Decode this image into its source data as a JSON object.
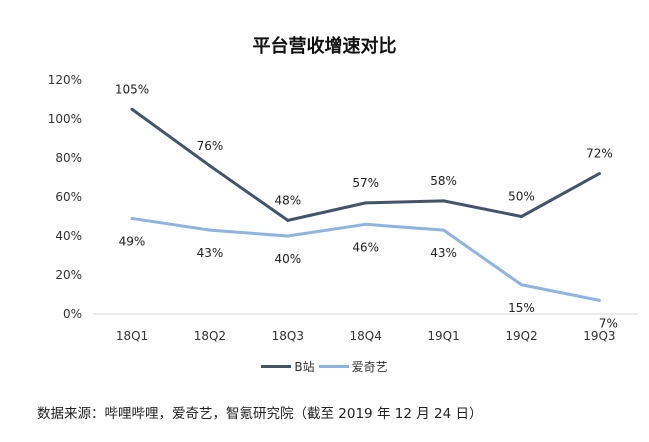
{
  "chart_data": {
    "type": "line",
    "title": "平台营收增速对比",
    "categories": [
      "18Q1",
      "18Q2",
      "18Q3",
      "18Q4",
      "19Q1",
      "19Q2",
      "19Q3"
    ],
    "series": [
      {
        "name": "B站",
        "color": "#44546a",
        "values": [
          105,
          76,
          48,
          57,
          58,
          50,
          72
        ],
        "labels": [
          "105%",
          "76%",
          "48%",
          "57%",
          "58%",
          "50%",
          "72%"
        ],
        "label_position": "above"
      },
      {
        "name": "爱奇艺",
        "color": "#8eb4e3",
        "values": [
          49,
          43,
          40,
          46,
          43,
          15,
          7
        ],
        "labels": [
          "49%",
          "43%",
          "40%",
          "46%",
          "43%",
          "15%",
          "7%"
        ],
        "label_position": "below"
      }
    ],
    "ylim": [
      0,
      120
    ],
    "yticks": [
      "0%",
      "20%",
      "40%",
      "60%",
      "80%",
      "100%",
      "120%"
    ],
    "ytick_values": [
      0,
      20,
      40,
      60,
      80,
      100,
      120
    ],
    "xlabel": "",
    "ylabel": "",
    "grid": false,
    "legend": "bottom"
  },
  "source": "数据来源：哔哩哔哩，爱奇艺，智氪研究院（截至 2019 年 12 月 24 日）"
}
